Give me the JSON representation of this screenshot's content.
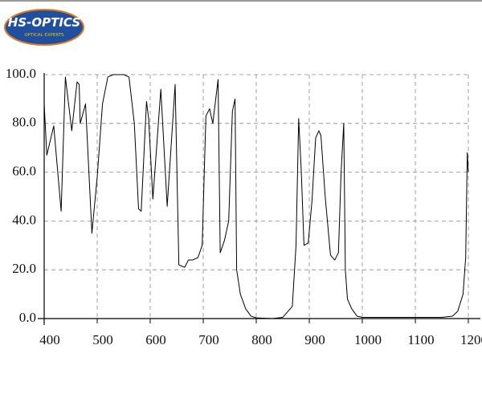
{
  "header": {
    "logo_title": "HS-OPTICS",
    "logo_subtitle": "OPTICAL EXPERTS"
  },
  "chart_data": {
    "type": "line",
    "x": [
      400,
      405,
      418,
      432,
      440,
      452,
      462,
      466,
      468,
      478,
      490,
      500,
      510,
      520,
      530,
      550,
      560,
      570,
      578,
      583,
      593,
      597,
      605,
      620,
      632,
      647,
      654,
      665,
      672,
      680,
      690,
      698,
      705,
      712,
      718,
      728,
      732,
      740,
      748,
      755,
      760,
      763,
      770,
      780,
      790,
      800,
      830,
      850,
      868,
      875,
      880,
      885,
      890,
      898,
      905,
      912,
      918,
      922,
      930,
      940,
      948,
      955,
      960,
      965,
      968,
      972,
      980,
      990,
      1000,
      1100,
      1150,
      1170,
      1180,
      1190,
      1195,
      1198,
      1200
    ],
    "series": [
      {
        "color": "#000000",
        "values": [
          88,
          67,
          79,
          44,
          99,
          77,
          97,
          96,
          80,
          88,
          35,
          58,
          88,
          99,
          100,
          100,
          99,
          80,
          45,
          44,
          89,
          82,
          49,
          94,
          46,
          96,
          22,
          21,
          24,
          24,
          25,
          30,
          83,
          86,
          80,
          98,
          27,
          32,
          40,
          85,
          90,
          20,
          10,
          4,
          1,
          0.3,
          0,
          0.5,
          5,
          30,
          82,
          60,
          30,
          31,
          48,
          74,
          77,
          75,
          50,
          26,
          24,
          27,
          60,
          80,
          20,
          8,
          4,
          1,
          0.5,
          0.5,
          0.5,
          1,
          3,
          10,
          25,
          68,
          60
        ]
      }
    ],
    "xlim": [
      400,
      1200
    ],
    "xticks": [
      400,
      500,
      600,
      700,
      800,
      900,
      1000,
      1100,
      1200
    ],
    "ylim": [
      0,
      100
    ],
    "yticks": [
      {
        "value": 0,
        "label": "0.0"
      },
      {
        "value": 20,
        "label": "20.0"
      },
      {
        "value": 40,
        "label": "40.0"
      },
      {
        "value": 60,
        "label": "60.0"
      },
      {
        "value": 80,
        "label": "80.0"
      },
      {
        "value": 100,
        "label": "100.0"
      }
    ],
    "grid": true
  }
}
